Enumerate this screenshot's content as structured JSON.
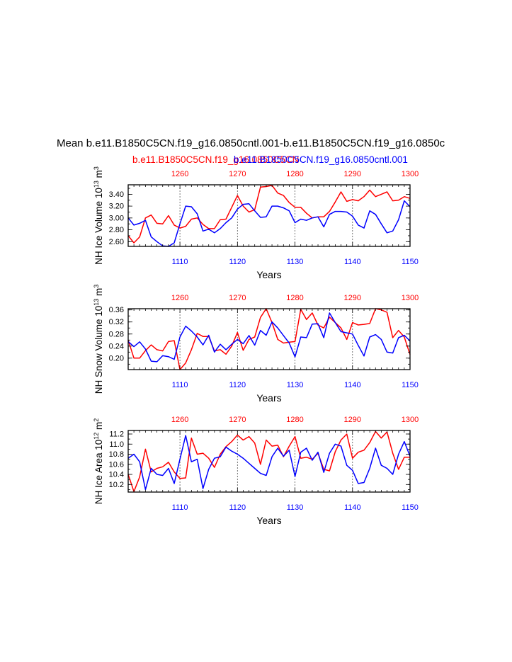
{
  "main_title": "Mean b.e11.B1850C5CN.f19_g16.0850cntl.001-b.e11.B1850C5CN.f19_g16.0850c",
  "subtitle_red": "b.e11.B1850C5CN.f19_g16.0850C5CN",
  "subtitle_blue": "b.e11.B1850C5CN.f19_g16.0850cntl.001",
  "colors": {
    "red": "#ff0000",
    "blue": "#0000ff",
    "axis": "#000000",
    "grid": "#555555"
  },
  "chart_data": [
    {
      "type": "line",
      "ylabel": "NH Ice Volume 10",
      "ylabel_exp": "13",
      "ylabel_unit": " m",
      "ylabel_unit_exp": "3",
      "xlabel": "Years",
      "top_axis": {
        "range": [
          1251,
          1300
        ],
        "ticks": [
          "1260",
          "1270",
          "1280",
          "1290",
          "1300"
        ],
        "tick_values": [
          1260,
          1270,
          1280,
          1290,
          1300
        ]
      },
      "bottom_axis": {
        "range": [
          1101,
          1150
        ],
        "ticks": [
          "1110",
          "1120",
          "1130",
          "1140",
          "1150"
        ],
        "tick_values": [
          1110,
          1120,
          1130,
          1140,
          1150
        ]
      },
      "ylim": [
        2.52,
        3.56
      ],
      "yticks": [
        "2.60",
        "2.80",
        "3.00",
        "3.20",
        "3.40"
      ],
      "ytick_values": [
        2.6,
        2.8,
        3.0,
        3.2,
        3.4
      ],
      "series": [
        {
          "name": "b.e11.B1850C5CN.f19_g16.0850C5CN",
          "color": "#ff0000",
          "axis": "top",
          "values": [
            2.7,
            2.58,
            2.68,
            3.0,
            3.05,
            2.91,
            2.9,
            3.04,
            2.88,
            2.83,
            2.86,
            2.98,
            3.0,
            2.89,
            2.82,
            2.82,
            2.97,
            2.98,
            3.18,
            3.38,
            3.2,
            3.1,
            3.14,
            3.52,
            3.53,
            3.55,
            3.42,
            3.38,
            3.26,
            3.18,
            3.18,
            3.08,
            3.0,
            3.02,
            3.02,
            3.11,
            3.27,
            3.44,
            3.28,
            3.31,
            3.29,
            3.36,
            3.47,
            3.36,
            3.4,
            3.44,
            3.29,
            3.3,
            3.36,
            3.33
          ]
        },
        {
          "name": "b.e11.B1850C5CN.f19_g16.0850cntl.001",
          "color": "#0000ff",
          "axis": "bottom",
          "values": [
            3.0,
            2.88,
            2.91,
            2.96,
            2.68,
            2.6,
            2.53,
            2.52,
            2.58,
            2.9,
            3.2,
            3.19,
            3.07,
            2.78,
            2.81,
            2.75,
            2.82,
            2.92,
            3.0,
            3.15,
            3.23,
            3.24,
            3.12,
            3.01,
            3.02,
            3.2,
            3.2,
            3.17,
            3.12,
            2.92,
            2.98,
            2.96,
            3.0,
            3.02,
            2.85,
            3.06,
            3.11,
            3.11,
            3.1,
            3.03,
            2.88,
            2.83,
            3.12,
            3.06,
            2.9,
            2.75,
            2.78,
            2.97,
            3.29,
            3.19
          ]
        }
      ]
    },
    {
      "type": "line",
      "ylabel": "NH Snow Volume 10",
      "ylabel_exp": "13",
      "ylabel_unit": " m",
      "ylabel_unit_exp": "3",
      "xlabel": "Years",
      "top_axis": {
        "range": [
          1251,
          1300
        ],
        "ticks": [
          "1260",
          "1270",
          "1280",
          "1290",
          "1300"
        ],
        "tick_values": [
          1260,
          1270,
          1280,
          1290,
          1300
        ]
      },
      "bottom_axis": {
        "range": [
          1101,
          1150
        ],
        "ticks": [
          "1110",
          "1120",
          "1130",
          "1140",
          "1150"
        ],
        "tick_values": [
          1110,
          1120,
          1130,
          1140,
          1150
        ]
      },
      "ylim": [
        0.162,
        0.364
      ],
      "yticks": [
        "0.20",
        "0.24",
        "0.28",
        "0.32",
        "0.36"
      ],
      "ytick_values": [
        0.2,
        0.24,
        0.28,
        0.32,
        0.36
      ],
      "series": [
        {
          "name": "b.e11.B1850C5CN.f19_g16.0850C5CN",
          "color": "#ff0000",
          "axis": "top",
          "values": [
            0.26,
            0.2,
            0.2,
            0.225,
            0.244,
            0.228,
            0.224,
            0.255,
            0.258,
            0.162,
            0.184,
            0.228,
            0.282,
            0.272,
            0.272,
            0.224,
            0.228,
            0.213,
            0.24,
            0.285,
            0.226,
            0.262,
            0.27,
            0.335,
            0.364,
            0.318,
            0.262,
            0.25,
            0.253,
            0.255,
            0.362,
            0.328,
            0.35,
            0.31,
            0.3,
            0.336,
            0.318,
            0.3,
            0.262,
            0.318,
            0.31,
            0.312,
            0.315,
            0.364,
            0.36,
            0.352,
            0.268,
            0.292,
            0.27,
            0.212
          ]
        },
        {
          "name": "b.e11.B1850C5CN.f19_g16.0850cntl.001",
          "color": "#0000ff",
          "axis": "bottom",
          "values": [
            0.255,
            0.238,
            0.254,
            0.23,
            0.19,
            0.188,
            0.208,
            0.205,
            0.196,
            0.27,
            0.306,
            0.29,
            0.27,
            0.244,
            0.276,
            0.22,
            0.246,
            0.228,
            0.246,
            0.262,
            0.248,
            0.275,
            0.243,
            0.292,
            0.276,
            0.32,
            0.3,
            0.275,
            0.25,
            0.204,
            0.27,
            0.268,
            0.313,
            0.314,
            0.268,
            0.35,
            0.318,
            0.288,
            0.284,
            0.28,
            0.242,
            0.207,
            0.27,
            0.278,
            0.262,
            0.22,
            0.217,
            0.268,
            0.276,
            0.257
          ]
        }
      ]
    },
    {
      "type": "line",
      "ylabel": "NH Ice Area 10",
      "ylabel_exp": "12",
      "ylabel_unit": " m",
      "ylabel_unit_exp": "2",
      "xlabel": "Years",
      "top_axis": {
        "range": [
          1251,
          1300
        ],
        "ticks": [
          "1260",
          "1270",
          "1280",
          "1290",
          "1300"
        ],
        "tick_values": [
          1260,
          1270,
          1280,
          1290,
          1300
        ]
      },
      "bottom_axis": {
        "range": [
          1101,
          1150
        ],
        "ticks": [
          "1110",
          "1120",
          "1130",
          "1140",
          "1150"
        ],
        "tick_values": [
          1110,
          1120,
          1130,
          1140,
          1150
        ]
      },
      "ylim": [
        10.05,
        11.27
      ],
      "yticks": [
        "10.2",
        "10.4",
        "10.6",
        "10.8",
        "11.0",
        "11.2"
      ],
      "ytick_values": [
        10.2,
        10.4,
        10.6,
        10.8,
        11.0,
        11.2
      ],
      "series": [
        {
          "name": "b.e11.B1850C5CN.f19_g16.0850C5CN",
          "color": "#ff0000",
          "axis": "top",
          "values": [
            10.4,
            10.06,
            10.35,
            10.9,
            10.45,
            10.52,
            10.55,
            10.64,
            10.45,
            10.32,
            10.33,
            11.12,
            10.8,
            10.82,
            10.72,
            10.54,
            10.8,
            10.95,
            11.05,
            11.18,
            11.08,
            11.15,
            11.02,
            10.6,
            11.08,
            10.96,
            10.98,
            10.75,
            10.96,
            11.15,
            10.72,
            10.74,
            10.7,
            10.82,
            10.5,
            10.47,
            10.85,
            11.08,
            11.2,
            10.72,
            10.84,
            10.88,
            11.03,
            11.25,
            11.12,
            11.24,
            10.82,
            10.5,
            10.74,
            10.74
          ]
        },
        {
          "name": "b.e11.B1850C5CN.f19_g16.0850cntl.001",
          "color": "#0000ff",
          "axis": "bottom",
          "values": [
            10.72,
            10.8,
            10.65,
            10.1,
            10.52,
            10.4,
            10.38,
            10.52,
            10.22,
            10.7,
            11.17,
            10.65,
            10.7,
            10.12,
            10.5,
            10.72,
            10.75,
            10.94,
            10.86,
            10.8,
            10.72,
            10.62,
            10.52,
            10.42,
            10.38,
            10.75,
            10.92,
            10.76,
            10.88,
            10.36,
            10.84,
            10.92,
            10.68,
            10.84,
            10.44,
            10.82,
            11.0,
            10.96,
            10.58,
            10.48,
            10.22,
            10.24,
            10.52,
            10.92,
            10.58,
            10.52,
            10.4,
            10.8,
            11.05,
            10.76
          ]
        }
      ]
    }
  ]
}
